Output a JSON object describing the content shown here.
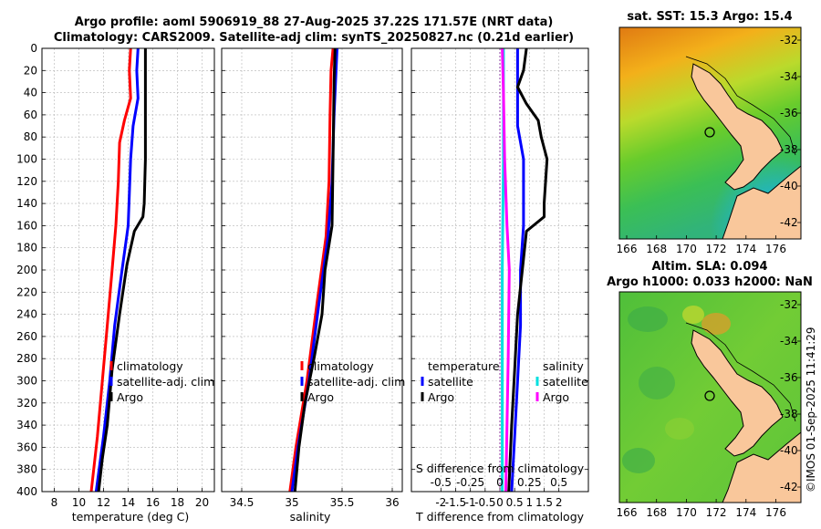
{
  "figure": {
    "title_line1": "Argo profile: aoml 5906919_88 27-Aug-2025 37.22S 171.57E (NRT data)",
    "title_line2": "Climatology: CARS2009. Satellite-adj clim: synTS_20250827.nc (0.21d earlier)",
    "credit": "©IMOS 01-Sep-2025 11:41:29"
  },
  "colors": {
    "climatology": "#ff0000",
    "satellite": "#0000ff",
    "argo": "#000000",
    "sat_salinity": "#00e0e0",
    "argo_salinity": "#ff00ff",
    "land": "#f9c79b"
  },
  "chart_data": [
    {
      "type": "line",
      "name": "temperature",
      "xlabel": "temperature (deg C)",
      "ylabel": "",
      "xlim": [
        7,
        21
      ],
      "ylim": [
        0,
        400
      ],
      "x_ticks": [
        "8",
        "10",
        "12",
        "14",
        "16",
        "18",
        "20"
      ],
      "x_tick_values": [
        8,
        10,
        12,
        14,
        16,
        18,
        20
      ],
      "y_ticks": [
        "0",
        "20",
        "40",
        "60",
        "80",
        "100",
        "120",
        "140",
        "160",
        "180",
        "200",
        "220",
        "240",
        "260",
        "280",
        "300",
        "320",
        "340",
        "360",
        "380",
        "400"
      ],
      "legend": [
        "climatology",
        "satellite-adj. clim",
        "Argo"
      ],
      "series": [
        {
          "name": "climatology",
          "color": "#ff0000",
          "points": [
            [
              14.2,
              0
            ],
            [
              14.1,
              20
            ],
            [
              14.2,
              45
            ],
            [
              13.7,
              65
            ],
            [
              13.3,
              85
            ],
            [
              13.2,
              120
            ],
            [
              13.0,
              160
            ],
            [
              12.7,
              200
            ],
            [
              12.3,
              250
            ],
            [
              11.9,
              300
            ],
            [
              11.5,
              350
            ],
            [
              11.0,
              400
            ]
          ]
        },
        {
          "name": "satellite-adj. clim",
          "color": "#0000ff",
          "points": [
            [
              14.8,
              0
            ],
            [
              14.7,
              20
            ],
            [
              14.8,
              45
            ],
            [
              14.4,
              70
            ],
            [
              14.2,
              100
            ],
            [
              14.0,
              160
            ],
            [
              13.5,
              200
            ],
            [
              12.9,
              250
            ],
            [
              12.5,
              300
            ],
            [
              12.0,
              350
            ],
            [
              11.4,
              400
            ]
          ]
        },
        {
          "name": "Argo",
          "color": "#000000",
          "points": [
            [
              15.4,
              0
            ],
            [
              15.4,
              40
            ],
            [
              15.4,
              100
            ],
            [
              15.3,
              140
            ],
            [
              15.2,
              152
            ],
            [
              14.5,
              165
            ],
            [
              13.9,
              195
            ],
            [
              13.3,
              240
            ],
            [
              12.7,
              290
            ],
            [
              12.3,
              340
            ],
            [
              11.9,
              370
            ],
            [
              11.6,
              400
            ]
          ]
        }
      ]
    },
    {
      "type": "line",
      "name": "salinity",
      "xlabel": "salinity",
      "xlim": [
        34.3,
        36.1
      ],
      "ylim": [
        0,
        400
      ],
      "x_ticks": [
        "34.5",
        "35",
        "35.5",
        "36"
      ],
      "x_tick_values": [
        34.5,
        35,
        35.5,
        36
      ],
      "legend": [
        "climatology",
        "satellite-adj. clim",
        "Argo"
      ],
      "series": [
        {
          "name": "climatology",
          "color": "#ff0000",
          "points": [
            [
              35.41,
              0
            ],
            [
              35.39,
              20
            ],
            [
              35.38,
              60
            ],
            [
              35.37,
              120
            ],
            [
              35.34,
              170
            ],
            [
              35.25,
              230
            ],
            [
              35.15,
              300
            ],
            [
              35.04,
              360
            ],
            [
              34.98,
              400
            ]
          ]
        },
        {
          "name": "satellite-adj. clim",
          "color": "#0000ff",
          "points": [
            [
              35.45,
              0
            ],
            [
              35.44,
              20
            ],
            [
              35.42,
              60
            ],
            [
              35.4,
              120
            ],
            [
              35.36,
              170
            ],
            [
              35.27,
              230
            ],
            [
              35.17,
              300
            ],
            [
              35.06,
              360
            ],
            [
              35.0,
              400
            ]
          ]
        },
        {
          "name": "Argo",
          "color": "#000000",
          "points": [
            [
              35.43,
              0
            ],
            [
              35.42,
              30
            ],
            [
              35.41,
              100
            ],
            [
              35.4,
              160
            ],
            [
              35.33,
              200
            ],
            [
              35.3,
              240
            ],
            [
              35.22,
              280
            ],
            [
              35.13,
              320
            ],
            [
              35.07,
              360
            ],
            [
              35.03,
              400
            ]
          ]
        }
      ]
    },
    {
      "type": "line",
      "name": "difference",
      "xlabel": "T difference from climatology",
      "xlabel_top": "S difference from climatology",
      "xlim": [
        -3,
        3
      ],
      "ylim": [
        0,
        400
      ],
      "x_ticks": [
        "-2",
        "-1.5",
        "-1",
        "-0.5",
        "0",
        "0.5",
        "1",
        "1.5",
        "2"
      ],
      "x_tick_values": [
        -2,
        -1.5,
        -1,
        -0.5,
        0,
        0.5,
        1,
        1.5,
        2
      ],
      "s_ticks": [
        "-0.5",
        "-0.25",
        "0",
        "0.25",
        "0.5"
      ],
      "s_tick_values": [
        -0.5,
        -0.25,
        0,
        0.25,
        0.5
      ],
      "legend_temperature": [
        "temperature",
        "satellite",
        "Argo"
      ],
      "legend_salinity": [
        "salinity",
        "satellite",
        "Argo"
      ],
      "series": [
        {
          "name": "T satellite",
          "color": "#0000ff",
          "points": [
            [
              0.6,
              0
            ],
            [
              0.6,
              20
            ],
            [
              0.6,
              45
            ],
            [
              0.6,
              70
            ],
            [
              0.8,
              100
            ],
            [
              0.8,
              160
            ],
            [
              0.7,
              200
            ],
            [
              0.7,
              250
            ],
            [
              0.6,
              300
            ],
            [
              0.5,
              350
            ],
            [
              0.4,
              400
            ]
          ]
        },
        {
          "name": "T Argo",
          "color": "#000000",
          "points": [
            [
              0.9,
              0
            ],
            [
              0.8,
              20
            ],
            [
              0.6,
              35
            ],
            [
              0.9,
              50
            ],
            [
              1.3,
              65
            ],
            [
              1.4,
              80
            ],
            [
              1.6,
              100
            ],
            [
              1.5,
              140
            ],
            [
              1.5,
              152
            ],
            [
              0.9,
              165
            ],
            [
              0.8,
              190
            ],
            [
              0.6,
              240
            ],
            [
              0.5,
              290
            ],
            [
              0.4,
              340
            ],
            [
              0.3,
              400
            ]
          ]
        },
        {
          "name": "S satellite",
          "color": "#00e0e0",
          "points": [
            [
              0.03,
              0
            ],
            [
              0.03,
              100
            ],
            [
              0.02,
              200
            ],
            [
              0.02,
              300
            ],
            [
              0.02,
              400
            ]
          ]
        },
        {
          "name": "S Argo",
          "color": "#ff00ff",
          "points": [
            [
              0.02,
              0
            ],
            [
              0.03,
              40
            ],
            [
              0.04,
              100
            ],
            [
              0.06,
              160
            ],
            [
              0.08,
              200
            ],
            [
              0.07,
              280
            ],
            [
              0.06,
              340
            ],
            [
              0.05,
              400
            ]
          ]
        }
      ]
    },
    {
      "type": "heatmap",
      "name": "sst_map",
      "title": "sat. SST: 15.3  Argo: 15.4",
      "x_ticks": [
        "166",
        "168",
        "170",
        "172",
        "174",
        "176"
      ],
      "y_ticks": [
        "-32",
        "-34",
        "-36",
        "-38",
        "-40",
        "-42"
      ]
    },
    {
      "type": "heatmap",
      "name": "sla_map",
      "title_line1": "Altim. SLA: 0.094",
      "title_line2": "Argo h1000: 0.033  h2000: NaN",
      "x_ticks": [
        "166",
        "168",
        "170",
        "172",
        "174",
        "176"
      ],
      "y_ticks": [
        "-32",
        "-34",
        "-36",
        "-38",
        "-40",
        "-42"
      ]
    }
  ]
}
